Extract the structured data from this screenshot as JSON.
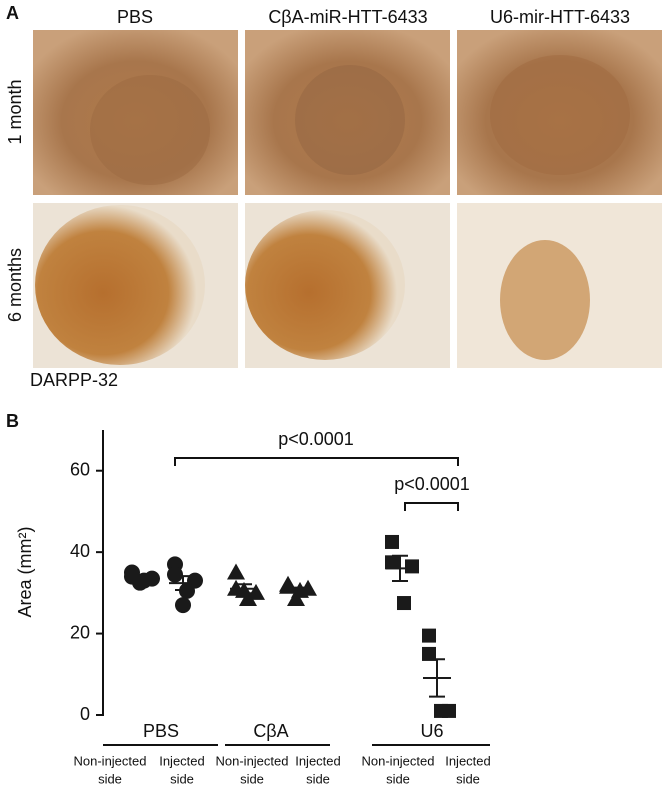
{
  "panel_a": {
    "letter": "A",
    "columns": [
      "PBS",
      "CβA-miR-HTT-6433",
      "U6-mir-HTT-6433"
    ],
    "rows": [
      "1 month",
      "6 months"
    ],
    "stain": "DARPP-32"
  },
  "chart_data": {
    "type": "dotplot",
    "letter": "B",
    "y_label": "Area (mm²)",
    "ylim": [
      0,
      70
    ],
    "yticks": [
      0,
      20,
      40,
      60
    ],
    "color": "#1a1a1a",
    "groups": [
      {
        "name": "PBS",
        "marker": "circle",
        "columns": [
          {
            "label": [
              "Non-injected",
              "side"
            ],
            "values": [
              35,
              34,
              33.5,
              33,
              32.5
            ],
            "mean": 33.6,
            "sem": 0.5
          },
          {
            "label": [
              "Injected",
              "side"
            ],
            "values": [
              37,
              34.5,
              33,
              30.5,
              27
            ],
            "mean": 32.4,
            "sem": 1.7
          }
        ]
      },
      {
        "name": "CβA",
        "marker": "triangle",
        "columns": [
          {
            "label": [
              "Non-injected",
              "side"
            ],
            "values": [
              35,
              31,
              30,
              28.5,
              30.5
            ],
            "mean": 31,
            "sem": 1.1
          },
          {
            "label": [
              "Injected",
              "side"
            ],
            "values": [
              32,
              31.5,
              31,
              30.5,
              28.5
            ],
            "mean": 30.7,
            "sem": 0.6
          }
        ]
      },
      {
        "name": "U6",
        "marker": "square",
        "columns": [
          {
            "label": [
              "Non-injected",
              "side"
            ],
            "values": [
              42.5,
              37.5,
              36.5,
              27.5
            ],
            "mean": 36,
            "sem": 3.1
          },
          {
            "label": [
              "Injected",
              "side"
            ],
            "values": [
              19.5,
              15,
              1,
              1
            ],
            "mean": 9.1,
            "sem": 4.6
          }
        ]
      }
    ],
    "annotations": [
      "p<0.0001",
      "p<0.0001"
    ]
  }
}
